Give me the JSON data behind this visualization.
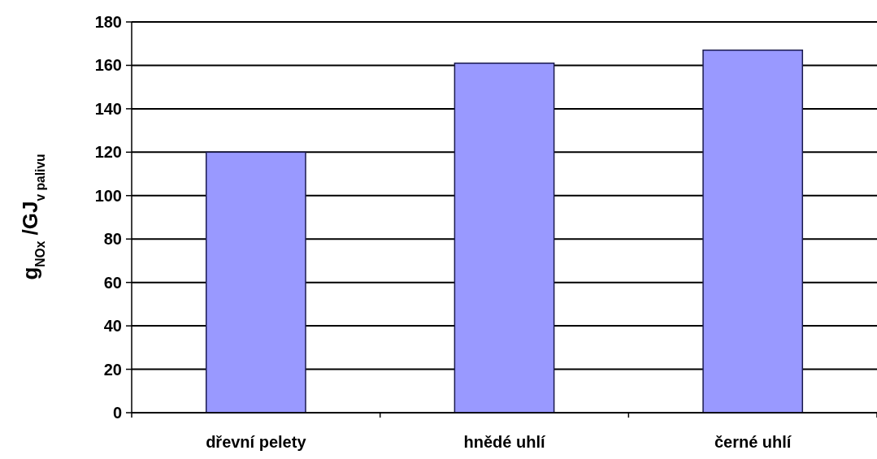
{
  "chart_data": {
    "type": "bar",
    "ylabel": "g$_{NOx}$ /GJ$_{v palivu}$",
    "categories": [
      "dřevní pelety",
      "hnědé uhlí",
      "černé uhlí"
    ],
    "values": [
      120,
      161,
      167
    ],
    "color": "#9999ff",
    "ylim": [
      0,
      180
    ],
    "yticks": [
      0,
      20,
      40,
      60,
      80,
      100,
      120,
      140,
      160,
      180
    ],
    "grid": "y"
  }
}
